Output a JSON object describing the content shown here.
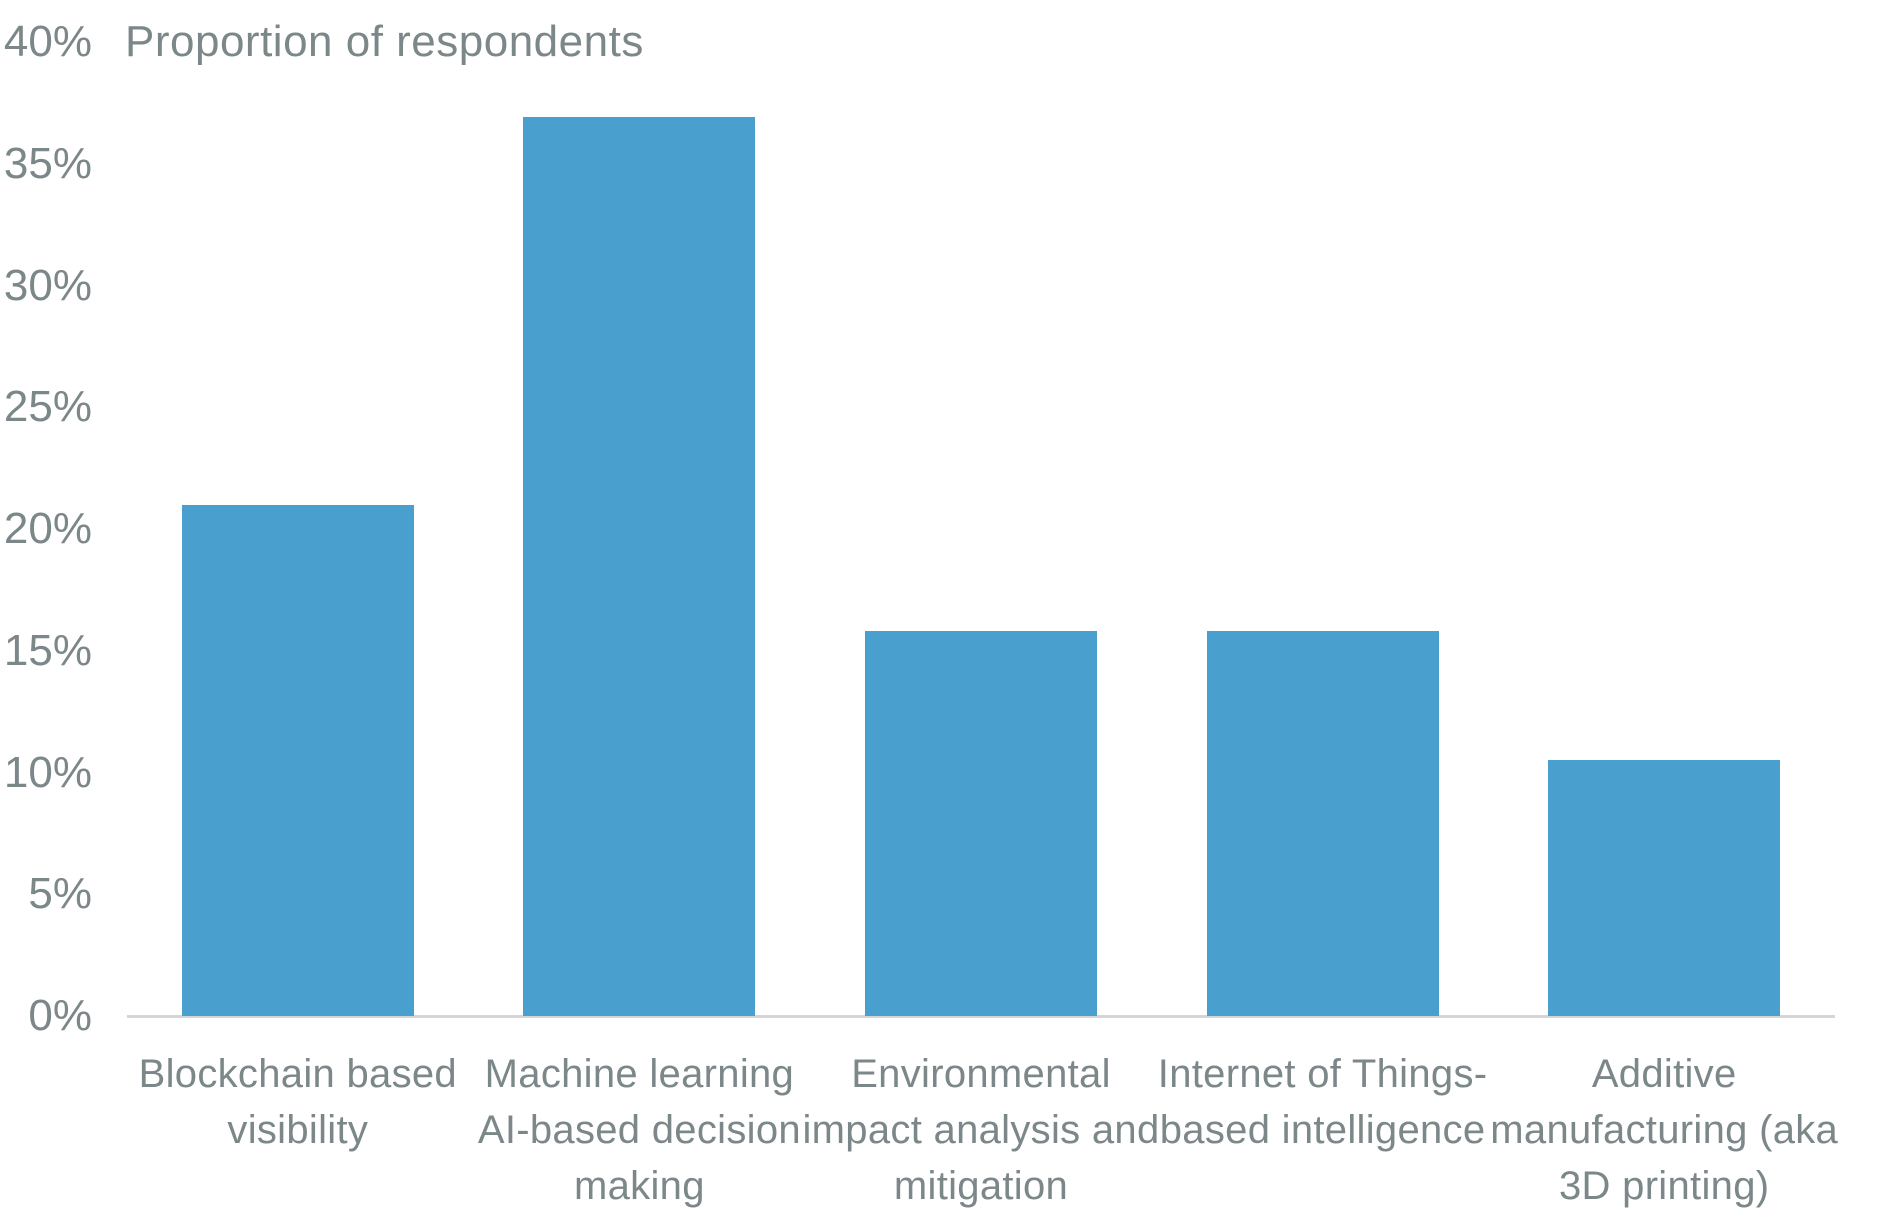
{
  "chart_data": {
    "type": "bar",
    "title": "Proportion of respondents",
    "categories": [
      "Blockchain based visibility",
      "Machine learning AI-based decision making",
      "Environmental impact analysis and mitigation",
      "Internet of Things-based intelligence",
      "Additive manufacturing (aka 3D printing)"
    ],
    "category_lines": [
      [
        "Blockchain based",
        "visibility"
      ],
      [
        "Machine learning",
        "AI-based decision",
        "making"
      ],
      [
        "Environmental",
        "impact analysis and",
        "mitigation"
      ],
      [
        "Internet of Things-",
        "based intelligence"
      ],
      [
        "Additive",
        "manufacturing (aka",
        "3D printing)"
      ]
    ],
    "values": [
      21,
      36.9,
      15.8,
      15.8,
      10.5
    ],
    "y_ticks": [
      "40%",
      "35%",
      "30%",
      "25%",
      "20%",
      "15%",
      "10%",
      "5%",
      "0%"
    ],
    "ylim": [
      0,
      40
    ],
    "xlabel": "",
    "ylabel": "Proportion of respondents",
    "grid": false,
    "legend_position": "none",
    "bar_color": "#49A0CE",
    "text_color": "#7C8789",
    "axis_color": "#D6D6D6",
    "background_color": "#FFFFFF"
  }
}
